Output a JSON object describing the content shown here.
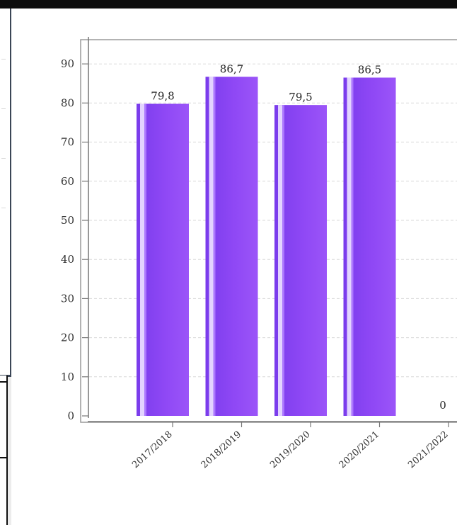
{
  "colors": {
    "bar": "#8b45f0",
    "bar_light": "#b080ff",
    "grid": "#d8d8d8",
    "axis": "#777777",
    "background": "#ffffff",
    "top_bar": "#0d0d0d",
    "popup_border": "#3b4656"
  },
  "chart_data": {
    "type": "bar",
    "categories": [
      "2017/2018",
      "2018/2019",
      "2019/2020",
      "2020/2021",
      "2021/2022"
    ],
    "values": [
      79.8,
      86.7,
      79.5,
      86.5,
      0
    ],
    "data_labels": [
      "79,8",
      "86,7",
      "79,5",
      "86,5",
      "0"
    ],
    "ylim": [
      0,
      90
    ],
    "yticks": [
      0,
      10,
      20,
      30,
      40,
      50,
      60,
      70,
      80,
      90
    ],
    "grid": true,
    "title": "",
    "xlabel": "",
    "ylabel": ""
  }
}
